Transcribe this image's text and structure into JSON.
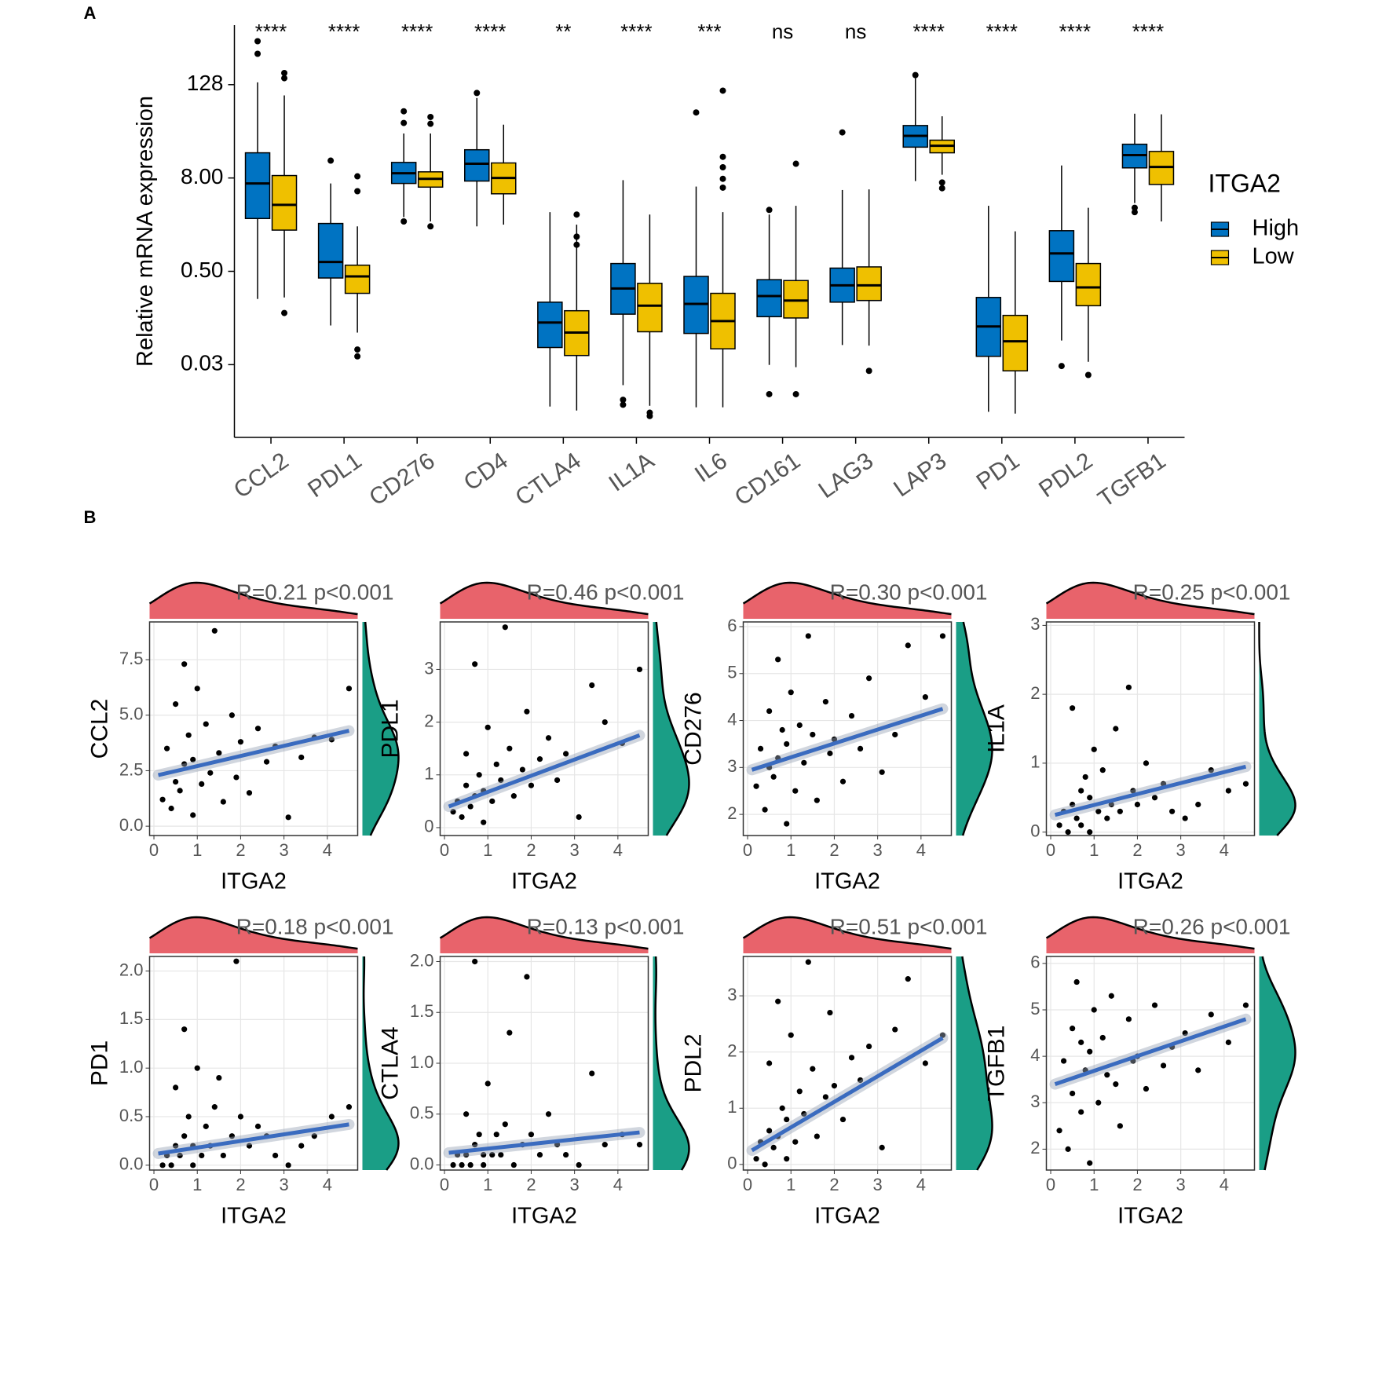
{
  "panel_labels": [
    "A",
    "B"
  ],
  "chart_data": [
    {
      "type": "box",
      "ylabel": "Relative mRNA expression",
      "categories": [
        "CCL2",
        "PDL1",
        "CD276",
        "CD4",
        "CTLA4",
        "IL1A",
        "IL6",
        "CD161",
        "LAG3",
        "LAP3",
        "PD1",
        "PDL2",
        "TGFB1"
      ],
      "annotations": [
        "****",
        "****",
        "****",
        "****",
        "**",
        "****",
        "***",
        "ns",
        "ns",
        "****",
        "****",
        "****",
        "****"
      ],
      "log_scale": true,
      "ylim": [
        0.0036,
        750
      ],
      "yticks": [
        {
          "value": 0.03125,
          "label": "0.03"
        },
        {
          "value": 0.5,
          "label": "0.50"
        },
        {
          "value": 8,
          "label": "8.00"
        },
        128
      ],
      "legend_title": "ITGA2",
      "legend_position": "right",
      "series": [
        {
          "name": "High",
          "color": "#0073C2",
          "whisker_low": [
            0.22,
            0.1,
            2.5,
            1.9,
            0.009,
            0.017,
            0.0088,
            0.031,
            0.056,
            7.3,
            0.0077,
            0.064,
            3.8
          ],
          "q1": [
            2.4,
            0.41,
            6.8,
            7.3,
            0.052,
            0.14,
            0.079,
            0.13,
            0.2,
            20,
            0.04,
            0.37,
            10.8
          ],
          "median": [
            6.8,
            0.66,
            9.2,
            12.2,
            0.109,
            0.3,
            0.19,
            0.24,
            0.33,
            28,
            0.097,
            0.85,
            15.8
          ],
          "q3": [
            16.9,
            2.07,
            12.7,
            18.5,
            0.2,
            0.63,
            0.43,
            0.39,
            0.55,
            38,
            0.23,
            1.67,
            21.8
          ],
          "whisker_high": [
            137,
            6.8,
            30,
            86,
            2.9,
            7.5,
            6.2,
            2.7,
            5.6,
            155,
            3.5,
            11.6,
            54
          ],
          "outliers": [
            [
              465,
              320
            ],
            [
              13.4
            ],
            [
              58,
              41,
              2.2
            ],
            [
              100
            ],
            [],
            [
              0.011,
              0.0095
            ],
            [
              56
            ],
            [
              3.1,
              0.013
            ],
            [
              31
            ],
            [
              170
            ],
            [],
            [
              0.03
            ],
            [
              3.3,
              2.9
            ]
          ]
        },
        {
          "name": "Low",
          "color": "#EFC000",
          "whisker_low": [
            0.23,
            0.081,
            2.2,
            2,
            0.008,
            0.0092,
            0.0088,
            0.029,
            0.055,
            8.8,
            0.0073,
            0.034,
            2.2
          ],
          "q1": [
            1.7,
            0.26,
            6.1,
            5,
            0.041,
            0.083,
            0.05,
            0.125,
            0.21,
            16.9,
            0.026,
            0.18,
            6.6
          ],
          "median": [
            3.6,
            0.43,
            7.8,
            8,
            0.081,
            0.18,
            0.114,
            0.21,
            0.33,
            20.8,
            0.0625,
            0.31,
            11.1
          ],
          "q3": [
            8.6,
            0.6,
            9.6,
            12.5,
            0.155,
            0.35,
            0.26,
            0.38,
            0.57,
            24.6,
            0.135,
            0.63,
            17.6
          ],
          "whisker_high": [
            93,
            1.9,
            30,
            39,
            2.0,
            2.7,
            2.9,
            3.5,
            5.7,
            50,
            1.64,
            3.3,
            53
          ],
          "outliers": [
            [
              181,
              155,
              0.145
            ],
            [
              8.4,
              5.4,
              0.049,
              0.04
            ],
            [
              49,
              40,
              1.9
            ],
            [],
            [
              2.7,
              1.4,
              1.1
            ],
            [
              0.0075,
              0.0068
            ],
            [
              107,
              15,
              11,
              7.8,
              6.0
            ],
            [
              12.2,
              0.013
            ],
            [
              0.026
            ],
            [
              7.0,
              5.9
            ],
            [],
            [
              0.023
            ],
            []
          ]
        }
      ]
    },
    {
      "type": "scatter",
      "xlabel": "ITGA2",
      "ylabel": "CCL2",
      "annotation": "R=0.21 p<0.001",
      "xlim": [
        -0.1,
        4.7
      ],
      "ylim": [
        -0.42,
        9.2
      ],
      "xticks": [
        0,
        1,
        2,
        3,
        4
      ],
      "yticks": [
        {
          "value": 0,
          "label": "0.0"
        },
        2.5,
        {
          "value": 5,
          "label": "5.0"
        },
        7.5
      ],
      "grid": true,
      "point_color": "#000000",
      "fit_color": "#3A6BBF",
      "x_density_color": "#E8636B",
      "y_density_color": "#1A9E86",
      "x": [
        0.2,
        0.3,
        0.4,
        0.5,
        0.5,
        0.6,
        0.7,
        0.7,
        0.8,
        0.9,
        0.9,
        1.0,
        1.1,
        1.2,
        1.3,
        1.4,
        1.5,
        1.6,
        1.8,
        1.9,
        2.0,
        2.2,
        2.4,
        2.6,
        2.8,
        3.1,
        3.4,
        3.7,
        4.1,
        4.5
      ],
      "y": [
        1.2,
        3.5,
        0.8,
        2.0,
        5.5,
        1.6,
        7.3,
        2.8,
        4.1,
        0.5,
        3.0,
        6.2,
        1.9,
        4.6,
        2.4,
        8.8,
        3.3,
        1.1,
        5.0,
        2.2,
        3.8,
        1.5,
        4.4,
        2.9,
        3.6,
        0.4,
        3.1,
        4.0,
        3.9,
        6.2
      ],
      "fit": {
        "x": [
          0.1,
          4.5
        ],
        "y": [
          2.3,
          4.3
        ]
      }
    },
    {
      "type": "scatter",
      "xlabel": "ITGA2",
      "ylabel": "PDL1",
      "annotation": "R=0.46 p<0.001",
      "xlim": [
        -0.1,
        4.7
      ],
      "ylim": [
        -0.15,
        3.9
      ],
      "xticks": [
        0,
        1,
        2,
        3,
        4
      ],
      "yticks": [
        0,
        1,
        2,
        3
      ],
      "grid": true,
      "point_color": "#000000",
      "fit_color": "#3A6BBF",
      "x_density_color": "#E8636B",
      "y_density_color": "#1A9E86",
      "x": [
        0.2,
        0.3,
        0.4,
        0.5,
        0.5,
        0.6,
        0.7,
        0.7,
        0.8,
        0.9,
        0.9,
        1.0,
        1.1,
        1.2,
        1.3,
        1.4,
        1.5,
        1.6,
        1.8,
        1.9,
        2.0,
        2.2,
        2.4,
        2.6,
        2.8,
        3.1,
        3.4,
        3.7,
        4.1,
        4.5
      ],
      "y": [
        0.3,
        0.5,
        0.2,
        0.8,
        1.4,
        0.4,
        3.1,
        0.6,
        1.0,
        0.1,
        0.7,
        1.9,
        0.5,
        1.2,
        0.9,
        3.8,
        1.5,
        0.6,
        1.1,
        2.2,
        0.8,
        1.3,
        1.7,
        0.9,
        1.4,
        0.2,
        2.7,
        2.0,
        1.6,
        3.0
      ],
      "fit": {
        "x": [
          0.1,
          4.5
        ],
        "y": [
          0.4,
          1.75
        ]
      }
    },
    {
      "type": "scatter",
      "xlabel": "ITGA2",
      "ylabel": "CD276",
      "annotation": "R=0.30 p<0.001",
      "xlim": [
        -0.1,
        4.7
      ],
      "ylim": [
        1.55,
        6.1
      ],
      "xticks": [
        0,
        1,
        2,
        3,
        4
      ],
      "yticks": [
        2,
        3,
        4,
        5,
        6
      ],
      "grid": true,
      "point_color": "#000000",
      "fit_color": "#3A6BBF",
      "x_density_color": "#E8636B",
      "y_density_color": "#1A9E86",
      "x": [
        0.2,
        0.3,
        0.4,
        0.5,
        0.5,
        0.6,
        0.7,
        0.7,
        0.8,
        0.9,
        0.9,
        1.0,
        1.1,
        1.2,
        1.3,
        1.4,
        1.5,
        1.6,
        1.8,
        1.9,
        2.0,
        2.2,
        2.4,
        2.6,
        2.8,
        3.1,
        3.4,
        3.7,
        4.1,
        4.5
      ],
      "y": [
        2.6,
        3.4,
        2.1,
        3.0,
        4.2,
        2.8,
        5.3,
        3.2,
        3.8,
        1.8,
        3.5,
        4.6,
        2.5,
        3.9,
        3.1,
        5.8,
        3.7,
        2.3,
        4.4,
        3.3,
        3.6,
        2.7,
        4.1,
        3.4,
        4.9,
        2.9,
        3.7,
        5.6,
        4.5,
        5.8
      ],
      "fit": {
        "x": [
          0.1,
          4.5
        ],
        "y": [
          2.95,
          4.25
        ]
      }
    },
    {
      "type": "scatter",
      "xlabel": "ITGA2",
      "ylabel": "IL1A",
      "annotation": "R=0.25 p<0.001",
      "xlim": [
        -0.1,
        4.7
      ],
      "ylim": [
        -0.05,
        3.05
      ],
      "xticks": [
        0,
        1,
        2,
        3,
        4
      ],
      "yticks": [
        0,
        1,
        2,
        3
      ],
      "grid": true,
      "point_color": "#000000",
      "fit_color": "#3A6BBF",
      "x_density_color": "#E8636B",
      "y_density_color": "#1A9E86",
      "x": [
        0.2,
        0.3,
        0.4,
        0.5,
        0.5,
        0.6,
        0.7,
        0.7,
        0.8,
        0.9,
        0.9,
        1.0,
        1.1,
        1.2,
        1.3,
        1.4,
        1.5,
        1.6,
        1.8,
        1.9,
        2.0,
        2.2,
        2.4,
        2.6,
        2.8,
        3.1,
        3.4,
        3.7,
        4.1,
        4.5
      ],
      "y": [
        0.1,
        0.3,
        0.0,
        0.4,
        1.8,
        0.2,
        0.6,
        0.1,
        0.8,
        0.0,
        0.5,
        1.2,
        0.3,
        0.9,
        0.2,
        0.4,
        1.5,
        0.3,
        2.1,
        0.6,
        0.4,
        1.0,
        0.5,
        0.7,
        0.3,
        0.2,
        0.4,
        0.9,
        0.6,
        0.7
      ],
      "fit": {
        "x": [
          0.1,
          4.5
        ],
        "y": [
          0.25,
          0.95
        ]
      }
    },
    {
      "type": "scatter",
      "xlabel": "ITGA2",
      "ylabel": "PD1",
      "annotation": "R=0.18 p<0.001",
      "xlim": [
        -0.1,
        4.7
      ],
      "ylim": [
        -0.05,
        2.15
      ],
      "xticks": [
        0,
        1,
        2,
        3,
        4
      ],
      "yticks": [
        {
          "value": 0,
          "label": "0.0"
        },
        0.5,
        {
          "value": 1,
          "label": "1.0"
        },
        1.5,
        {
          "value": 2,
          "label": "2.0"
        }
      ],
      "grid": true,
      "point_color": "#000000",
      "fit_color": "#3A6BBF",
      "x_density_color": "#E8636B",
      "y_density_color": "#1A9E86",
      "x": [
        0.2,
        0.3,
        0.4,
        0.5,
        0.5,
        0.6,
        0.7,
        0.7,
        0.8,
        0.9,
        0.9,
        1.0,
        1.1,
        1.2,
        1.3,
        1.4,
        1.5,
        1.6,
        1.8,
        1.9,
        2.0,
        2.2,
        2.4,
        2.6,
        2.8,
        3.1,
        3.4,
        3.7,
        4.1,
        4.5
      ],
      "y": [
        0.0,
        0.1,
        0.0,
        0.2,
        0.8,
        0.1,
        1.4,
        0.3,
        0.5,
        0.0,
        0.2,
        1.0,
        0.1,
        0.4,
        0.2,
        0.6,
        0.9,
        0.1,
        0.3,
        2.1,
        0.5,
        0.2,
        0.4,
        0.3,
        0.1,
        0.0,
        0.2,
        0.3,
        0.5,
        0.6
      ],
      "fit": {
        "x": [
          0.1,
          4.5
        ],
        "y": [
          0.12,
          0.42
        ]
      }
    },
    {
      "type": "scatter",
      "xlabel": "ITGA2",
      "ylabel": "CTLA4",
      "annotation": "R=0.13 p<0.001",
      "xlim": [
        -0.1,
        4.7
      ],
      "ylim": [
        -0.05,
        2.05
      ],
      "xticks": [
        0,
        1,
        2,
        3,
        4
      ],
      "yticks": [
        {
          "value": 0,
          "label": "0.0"
        },
        0.5,
        {
          "value": 1,
          "label": "1.0"
        },
        1.5,
        {
          "value": 2,
          "label": "2.0"
        }
      ],
      "grid": true,
      "point_color": "#000000",
      "fit_color": "#3A6BBF",
      "x_density_color": "#E8636B",
      "y_density_color": "#1A9E86",
      "x": [
        0.2,
        0.3,
        0.4,
        0.5,
        0.5,
        0.6,
        0.7,
        0.7,
        0.8,
        0.9,
        0.9,
        1.0,
        1.1,
        1.2,
        1.3,
        1.4,
        1.5,
        1.6,
        1.8,
        1.9,
        2.0,
        2.2,
        2.4,
        2.6,
        2.8,
        3.1,
        3.4,
        3.7,
        4.1,
        4.5
      ],
      "y": [
        0.0,
        0.1,
        0.0,
        0.1,
        0.5,
        0.0,
        2.0,
        0.2,
        0.3,
        0.0,
        0.1,
        0.8,
        0.1,
        0.3,
        0.1,
        0.4,
        1.3,
        0.0,
        0.2,
        1.85,
        0.3,
        0.1,
        0.5,
        0.2,
        0.1,
        0.0,
        0.9,
        0.2,
        0.3,
        0.2
      ],
      "fit": {
        "x": [
          0.1,
          4.5
        ],
        "y": [
          0.12,
          0.32
        ]
      }
    },
    {
      "type": "scatter",
      "xlabel": "ITGA2",
      "ylabel": "PDL2",
      "annotation": "R=0.51 p<0.001",
      "xlim": [
        -0.1,
        4.7
      ],
      "ylim": [
        -0.1,
        3.7
      ],
      "xticks": [
        0,
        1,
        2,
        3,
        4
      ],
      "yticks": [
        0,
        1,
        2,
        3
      ],
      "grid": true,
      "point_color": "#000000",
      "fit_color": "#3A6BBF",
      "x_density_color": "#E8636B",
      "y_density_color": "#1A9E86",
      "x": [
        0.2,
        0.3,
        0.4,
        0.5,
        0.5,
        0.6,
        0.7,
        0.7,
        0.8,
        0.9,
        0.9,
        1.0,
        1.1,
        1.2,
        1.3,
        1.4,
        1.5,
        1.6,
        1.8,
        1.9,
        2.0,
        2.2,
        2.4,
        2.6,
        2.8,
        3.1,
        3.4,
        3.7,
        4.1,
        4.5
      ],
      "y": [
        0.1,
        0.4,
        0.0,
        0.6,
        1.8,
        0.3,
        2.9,
        0.5,
        1.0,
        0.1,
        0.8,
        2.3,
        0.4,
        1.3,
        0.9,
        3.6,
        1.7,
        0.5,
        1.2,
        2.7,
        1.4,
        0.8,
        1.9,
        1.5,
        2.1,
        0.3,
        2.4,
        3.3,
        1.8,
        2.3
      ],
      "fit": {
        "x": [
          0.1,
          4.5
        ],
        "y": [
          0.25,
          2.25
        ]
      }
    },
    {
      "type": "scatter",
      "xlabel": "ITGA2",
      "ylabel": "TGFB1",
      "annotation": "R=0.26 p<0.001",
      "xlim": [
        -0.1,
        4.7
      ],
      "ylim": [
        1.55,
        6.15
      ],
      "xticks": [
        0,
        1,
        2,
        3,
        4
      ],
      "yticks": [
        2,
        3,
        4,
        5,
        6
      ],
      "grid": true,
      "point_color": "#000000",
      "fit_color": "#3A6BBF",
      "x_density_color": "#E8636B",
      "y_density_color": "#1A9E86",
      "x": [
        0.2,
        0.3,
        0.4,
        0.5,
        0.5,
        0.6,
        0.7,
        0.7,
        0.8,
        0.9,
        0.9,
        1.0,
        1.1,
        1.2,
        1.3,
        1.4,
        1.5,
        1.6,
        1.8,
        1.9,
        2.0,
        2.2,
        2.4,
        2.6,
        2.8,
        3.1,
        3.4,
        3.7,
        4.1,
        4.5
      ],
      "y": [
        2.4,
        3.9,
        2.0,
        4.6,
        3.2,
        5.6,
        4.3,
        2.8,
        3.7,
        1.7,
        4.1,
        5.0,
        3.0,
        4.4,
        3.6,
        5.3,
        3.4,
        2.5,
        4.8,
        3.9,
        4.0,
        3.3,
        5.1,
        3.8,
        4.2,
        4.5,
        3.7,
        4.9,
        4.3,
        5.1
      ],
      "fit": {
        "x": [
          0.1,
          4.5
        ],
        "y": [
          3.4,
          4.8
        ]
      }
    }
  ]
}
